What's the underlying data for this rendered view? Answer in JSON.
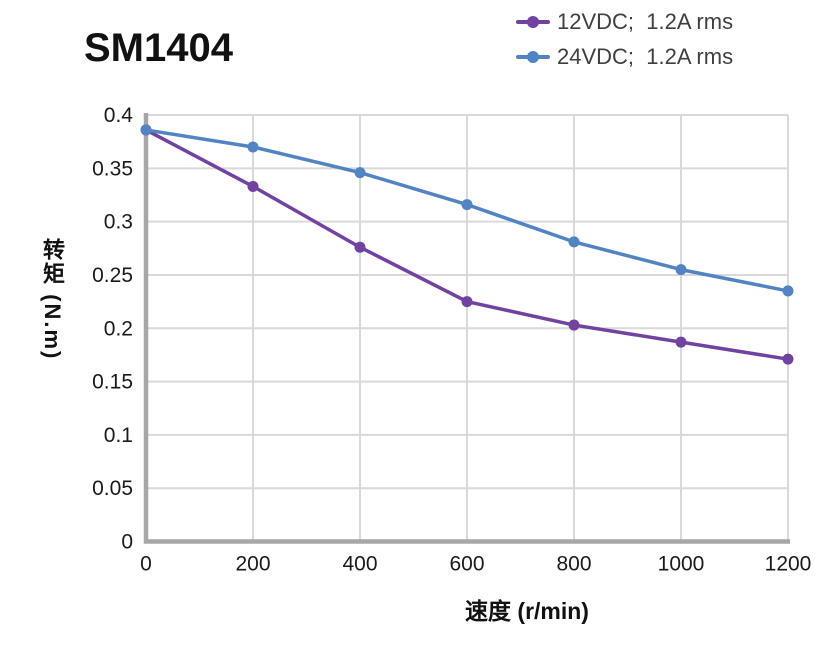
{
  "title": "SM1404",
  "legend": {
    "items": [
      {
        "label": "12VDC;  1.2A rms",
        "color": "#7142A0"
      },
      {
        "label": "24VDC;  1.2A rms",
        "color": "#5284C4"
      }
    ]
  },
  "axes": {
    "xlabel": "速度 (r/min)",
    "ylabel": "转矩 (N.m)"
  },
  "chart_data": {
    "type": "line",
    "title": "SM1404",
    "xlabel": "速度 (r/min)",
    "ylabel": "转矩 (N.m)",
    "x": [
      0,
      200,
      400,
      600,
      800,
      1000,
      1200
    ],
    "series": [
      {
        "name": "12VDC;  1.2A rms",
        "color": "#7142A0",
        "values": [
          0.386,
          0.333,
          0.276,
          0.225,
          0.203,
          0.187,
          0.171
        ]
      },
      {
        "name": "24VDC;  1.2A rms",
        "color": "#5284C4",
        "values": [
          0.386,
          0.37,
          0.346,
          0.316,
          0.281,
          0.255,
          0.235
        ]
      }
    ],
    "x_tick_labels": [
      "0",
      "200",
      "400",
      "600",
      "800",
      "1000",
      "1200"
    ],
    "y_tick_labels": [
      "0",
      "0.05",
      "0.1",
      "0.15",
      "0.2",
      "0.25",
      "0.3",
      "0.35",
      "0.4"
    ],
    "xlim": [
      0,
      1200
    ],
    "ylim": [
      0,
      0.4
    ],
    "grid": true,
    "legend_position": "top-right",
    "styles": {
      "grid_color": "#D9D9D9",
      "axis_color": "#A6A6A6",
      "tick_label_color": "#1a1a1a",
      "line_width": 3.5,
      "marker_radius": 5.5
    }
  }
}
